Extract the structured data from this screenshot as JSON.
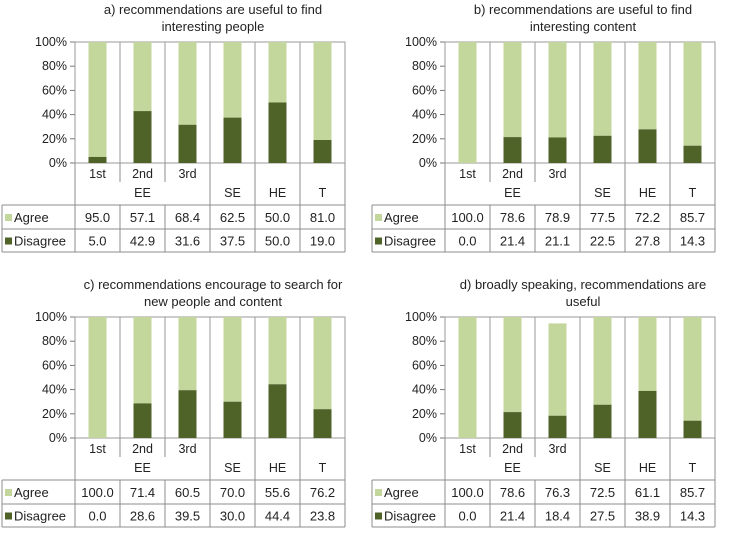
{
  "colors": {
    "agree": "#c3d69b",
    "disagree": "#4f6228",
    "grid": "#9a9a9a"
  },
  "chart_data": [
    {
      "type": "bar",
      "stacked": true,
      "title_lines": [
        "a) recommendations are useful to find",
        "interesting people"
      ],
      "categories": [
        "1st",
        "2nd",
        "3rd",
        "SE",
        "HE",
        "T"
      ],
      "group_label": "EE",
      "yticks": [
        "0%",
        "20%",
        "40%",
        "60%",
        "80%",
        "100%"
      ],
      "ylim": [
        0,
        100
      ],
      "series": [
        {
          "name": "Agree",
          "values": [
            "95.0",
            "57.1",
            "68.4",
            "62.5",
            "50.0",
            "81.0"
          ]
        },
        {
          "name": "Disagree",
          "values": [
            "5.0",
            "42.9",
            "31.6",
            "37.5",
            "50.0",
            "19.0"
          ]
        }
      ]
    },
    {
      "type": "bar",
      "stacked": true,
      "title_lines": [
        "b) recommendations are useful to find",
        "interesting content"
      ],
      "categories": [
        "1st",
        "2nd",
        "3rd",
        "SE",
        "HE",
        "T"
      ],
      "group_label": "EE",
      "yticks": [
        "0%",
        "20%",
        "40%",
        "60%",
        "80%",
        "100%"
      ],
      "ylim": [
        0,
        100
      ],
      "series": [
        {
          "name": "Agree",
          "values": [
            "100.0",
            "78.6",
            "78.9",
            "77.5",
            "72.2",
            "85.7"
          ]
        },
        {
          "name": "Disagree",
          "values": [
            "0.0",
            "21.4",
            "21.1",
            "22.5",
            "27.8",
            "14.3"
          ]
        }
      ]
    },
    {
      "type": "bar",
      "stacked": true,
      "title_lines": [
        "c) recommendations encourage to search for",
        "new people and content"
      ],
      "categories": [
        "1st",
        "2nd",
        "3rd",
        "SE",
        "HE",
        "T"
      ],
      "group_label": "EE",
      "yticks": [
        "0%",
        "20%",
        "40%",
        "60%",
        "80%",
        "100%"
      ],
      "ylim": [
        0,
        100
      ],
      "series": [
        {
          "name": "Agree",
          "values": [
            "100.0",
            "71.4",
            "60.5",
            "70.0",
            "55.6",
            "76.2"
          ]
        },
        {
          "name": "Disagree",
          "values": [
            "0.0",
            "28.6",
            "39.5",
            "30.0",
            "44.4",
            "23.8"
          ]
        }
      ]
    },
    {
      "type": "bar",
      "stacked": true,
      "title_lines": [
        "d) broadly speaking, recommendations are",
        "useful"
      ],
      "categories": [
        "1st",
        "2nd",
        "3rd",
        "SE",
        "HE",
        "T"
      ],
      "group_label": "EE",
      "yticks": [
        "0%",
        "20%",
        "40%",
        "60%",
        "80%",
        "100%"
      ],
      "ylim": [
        0,
        100
      ],
      "series": [
        {
          "name": "Agree",
          "values": [
            "100.0",
            "78.6",
            "76.3",
            "72.5",
            "61.1",
            "85.7"
          ]
        },
        {
          "name": "Disagree",
          "values": [
            "0.0",
            "21.4",
            "18.4",
            "27.5",
            "38.9",
            "14.3"
          ]
        }
      ]
    }
  ]
}
